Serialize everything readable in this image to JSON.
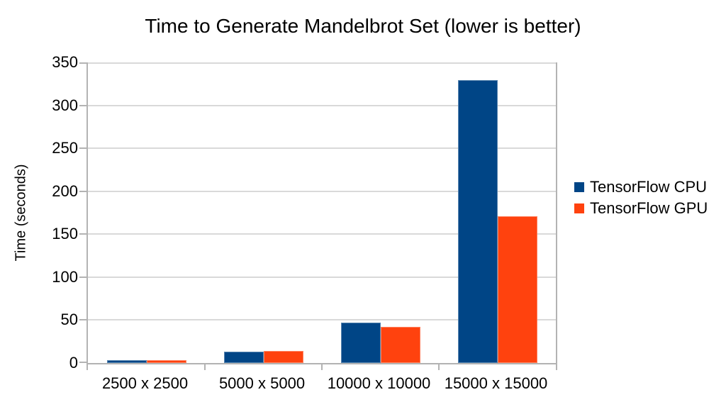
{
  "chart_data": {
    "type": "bar",
    "title": "Time to Generate Mandelbrot Set (lower is better)",
    "xlabel": "",
    "ylabel": "Time (seconds)",
    "categories": [
      "2500 x 2500",
      "5000 x 5000",
      "10000 x 10000",
      "15000 x 15000"
    ],
    "series": [
      {
        "name": "TensorFlow CPU",
        "color": "#004586",
        "values": [
          3,
          13,
          47,
          329
        ]
      },
      {
        "name": "TensorFlow GPU",
        "color": "#FF420E",
        "values": [
          3,
          14,
          42,
          171
        ]
      }
    ],
    "ylim": [
      0,
      350
    ],
    "ytick_step": 50,
    "yticks": [
      0,
      50,
      100,
      150,
      200,
      250,
      300,
      350
    ],
    "grid": true,
    "legend_position": "right",
    "colors": {
      "gridline": "#d9d9d9",
      "axis": "#b3b3b3",
      "text": "#000000",
      "background": "#ffffff"
    }
  }
}
